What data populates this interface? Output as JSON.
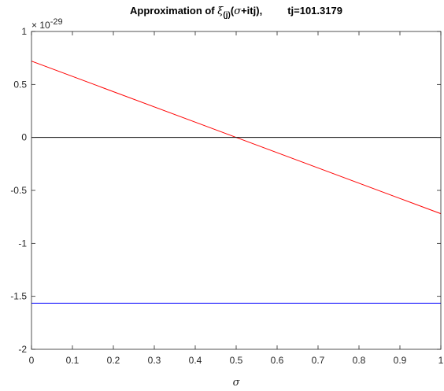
{
  "chart_data": {
    "type": "line",
    "title": {
      "prefix": "Approximation of ",
      "xi": "ξ",
      "sub": "(j)",
      "paren_open": "(",
      "sigma": "σ",
      "paren_rest": "+itj),",
      "tj": "tj=101.3179"
    },
    "xlabel": "σ",
    "ylabel": "",
    "y_exponent": {
      "base": "× 10",
      "power": "-29"
    },
    "xlim": [
      0,
      1
    ],
    "ylim": [
      -2,
      1
    ],
    "xticks": [
      "0",
      "0.1",
      "0.2",
      "0.3",
      "0.4",
      "0.5",
      "0.6",
      "0.7",
      "0.8",
      "0.9",
      "1"
    ],
    "xtick_values": [
      0,
      0.1,
      0.2,
      0.3,
      0.4,
      0.5,
      0.6,
      0.7,
      0.8,
      0.9,
      1
    ],
    "yticks": [
      "-2",
      "-1.5",
      "-1",
      "-0.5",
      "0",
      "0.5",
      "1"
    ],
    "ytick_values": [
      -2,
      -1.5,
      -1,
      -0.5,
      0,
      0.5,
      1
    ],
    "grid": false,
    "series": [
      {
        "color": "#ff0000",
        "x": [
          0,
          1
        ],
        "y": [
          0.72,
          -0.72
        ]
      },
      {
        "color": "#0000ff",
        "x": [
          0,
          1
        ],
        "y": [
          -1.565,
          -1.565
        ]
      },
      {
        "color": "#000000",
        "x": [
          0,
          1
        ],
        "y": [
          0,
          0
        ]
      }
    ]
  }
}
